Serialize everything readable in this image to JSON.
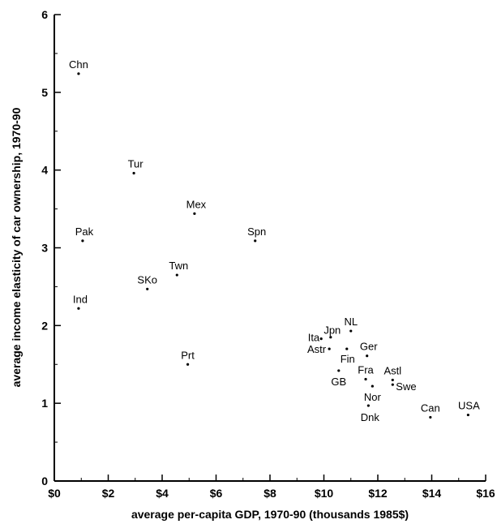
{
  "chart_data": {
    "type": "scatter",
    "title": "",
    "xlabel": "average per-capita GDP, 1970-90 (thousands 1985$)",
    "ylabel": "average income elasticity of car ownership, 1970-90",
    "xlim": [
      0,
      16
    ],
    "ylim": [
      0,
      6
    ],
    "x_ticks": [
      {
        "value": 0,
        "label": "$0"
      },
      {
        "value": 2,
        "label": "$2"
      },
      {
        "value": 4,
        "label": "$4"
      },
      {
        "value": 6,
        "label": "$6"
      },
      {
        "value": 8,
        "label": "$8"
      },
      {
        "value": 10,
        "label": "$10"
      },
      {
        "value": 12,
        "label": "$12"
      },
      {
        "value": 14,
        "label": "$14"
      },
      {
        "value": 16,
        "label": "$16"
      }
    ],
    "y_ticks": [
      {
        "value": 0,
        "label": "0"
      },
      {
        "value": 1,
        "label": "1"
      },
      {
        "value": 2,
        "label": "2"
      },
      {
        "value": 3,
        "label": "3"
      },
      {
        "value": 4,
        "label": "4"
      },
      {
        "value": 5,
        "label": "5"
      },
      {
        "value": 6,
        "label": "6"
      }
    ],
    "grid": false,
    "points": [
      {
        "label": "Chn",
        "x": 0.9,
        "y": 5.24
      },
      {
        "label": "Tur",
        "x": 2.95,
        "y": 3.96
      },
      {
        "label": "Mex",
        "x": 5.2,
        "y": 3.44
      },
      {
        "label": "Pak",
        "x": 1.05,
        "y": 3.09
      },
      {
        "label": "Spn",
        "x": 7.45,
        "y": 3.09
      },
      {
        "label": "Twn",
        "x": 4.55,
        "y": 2.65
      },
      {
        "label": "SKo",
        "x": 3.45,
        "y": 2.47
      },
      {
        "label": "Ind",
        "x": 0.9,
        "y": 2.22
      },
      {
        "label": "NL",
        "x": 11.0,
        "y": 1.93
      },
      {
        "label": "Jpn",
        "x": 10.25,
        "y": 1.85
      },
      {
        "label": "Ita",
        "x": 9.9,
        "y": 1.83
      },
      {
        "label": "Astr",
        "x": 10.2,
        "y": 1.7
      },
      {
        "label": "Fin",
        "x": 10.85,
        "y": 1.7
      },
      {
        "label": "Ger",
        "x": 11.6,
        "y": 1.61
      },
      {
        "label": "Prt",
        "x": 4.95,
        "y": 1.5
      },
      {
        "label": "GB",
        "x": 10.55,
        "y": 1.42
      },
      {
        "label": "Fra",
        "x": 11.55,
        "y": 1.31
      },
      {
        "label": "Astl",
        "x": 12.55,
        "y": 1.3
      },
      {
        "label": "Swe",
        "x": 12.55,
        "y": 1.24
      },
      {
        "label": "Nor",
        "x": 11.8,
        "y": 1.22
      },
      {
        "label": "Dnk",
        "x": 11.65,
        "y": 0.97
      },
      {
        "label": "Can",
        "x": 13.95,
        "y": 0.82
      },
      {
        "label": "USA",
        "x": 15.35,
        "y": 0.85
      }
    ]
  }
}
